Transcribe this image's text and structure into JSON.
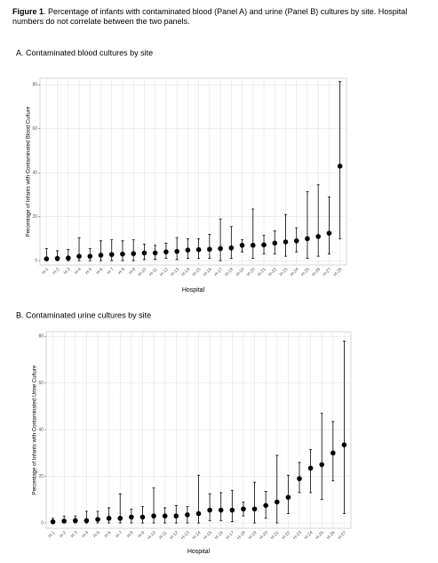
{
  "caption": {
    "label": "Figure 1",
    "text": ". Percentage of infants with contaminated blood (Panel A) and urine (Panel B) cultures by site. Hospital numbers do not correlate between the two panels."
  },
  "chart_data": [
    {
      "type": "scatter",
      "title": "A.  Contaminated blood cultures by site",
      "x_label": "Hospital",
      "y_label": "Percentage of Infants with Contaminated Blood Culture",
      "categories": [
        "H-1",
        "H-2",
        "H-3",
        "H-4",
        "H-5",
        "H-6",
        "H-7",
        "H-8",
        "H-9",
        "H-10",
        "H-11",
        "H-12",
        "H-13",
        "H-14",
        "H-15",
        "H-16",
        "H-17",
        "H-18",
        "H-19",
        "H-20",
        "H-21",
        "H-22",
        "H-23",
        "H-24",
        "H-25",
        "H-26",
        "H-27",
        "H-28"
      ],
      "values": [
        0.8,
        1.0,
        1.2,
        2,
        2,
        2.5,
        2.8,
        3,
        3.2,
        3.5,
        3.5,
        4,
        4.2,
        4.8,
        5,
        5.2,
        5.5,
        5.8,
        7,
        7,
        7.2,
        8,
        8.5,
        9,
        10,
        11,
        12.5,
        43
      ],
      "lower": [
        0,
        0,
        0,
        0,
        0,
        0,
        0,
        0,
        0,
        0.5,
        0.5,
        1,
        0.5,
        1,
        1,
        1,
        0,
        1,
        4,
        1,
        3,
        3,
        2,
        4,
        1,
        2,
        3,
        10
      ],
      "upper": [
        5.5,
        4.5,
        5,
        10.5,
        5.5,
        9,
        9.5,
        9,
        9.5,
        7.5,
        7,
        8,
        10.5,
        10,
        10,
        12,
        19,
        15.5,
        9.5,
        23.5,
        11.5,
        13.5,
        21,
        15,
        31.5,
        34.5,
        29,
        81.5
      ],
      "color": "#000000",
      "ylim": [
        -2,
        83
      ],
      "yticks": [
        0,
        20,
        40,
        60,
        80
      ],
      "grid": true
    },
    {
      "type": "scatter",
      "title": "B.  Contaminated urine cultures by site",
      "x_label": "Hospital",
      "y_label": "Percentage of Infants with Contaminated Urine Culture",
      "categories": [
        "H-1",
        "H-2",
        "H-3",
        "H-4",
        "H-5",
        "H-6",
        "H-7",
        "H-8",
        "H-9",
        "H-10",
        "H-11",
        "H-12",
        "H-13",
        "H-14",
        "H-15",
        "H-16",
        "H-17",
        "H-18",
        "H-19",
        "H-20",
        "H-21",
        "H-22",
        "H-23",
        "H-24",
        "H-25",
        "H-26",
        "H-27"
      ],
      "values": [
        0.5,
        0.8,
        1,
        1,
        1.5,
        2,
        2,
        2.5,
        2.5,
        3,
        3,
        3,
        3.5,
        4,
        5.5,
        5.5,
        5.5,
        6,
        6,
        7.5,
        9,
        11,
        19,
        23.5,
        25,
        30,
        33.5
      ],
      "lower": [
        0,
        0,
        0,
        0,
        0,
        0,
        0,
        0,
        0,
        0,
        0,
        0,
        0,
        0,
        1,
        1,
        0.5,
        3,
        0,
        2,
        0,
        4,
        13,
        13,
        10,
        18,
        4
      ],
      "upper": [
        2,
        3,
        3,
        5,
        5,
        6.5,
        12.5,
        6,
        7,
        15,
        6.5,
        7.5,
        7,
        20.5,
        12.5,
        13,
        14,
        9,
        17.5,
        13.5,
        29,
        20.5,
        26,
        31.5,
        47,
        43.5,
        78
      ],
      "color": "#000000",
      "ylim": [
        -2.3,
        82
      ],
      "yticks": [
        0,
        20,
        40,
        60,
        80
      ],
      "grid": true
    }
  ]
}
